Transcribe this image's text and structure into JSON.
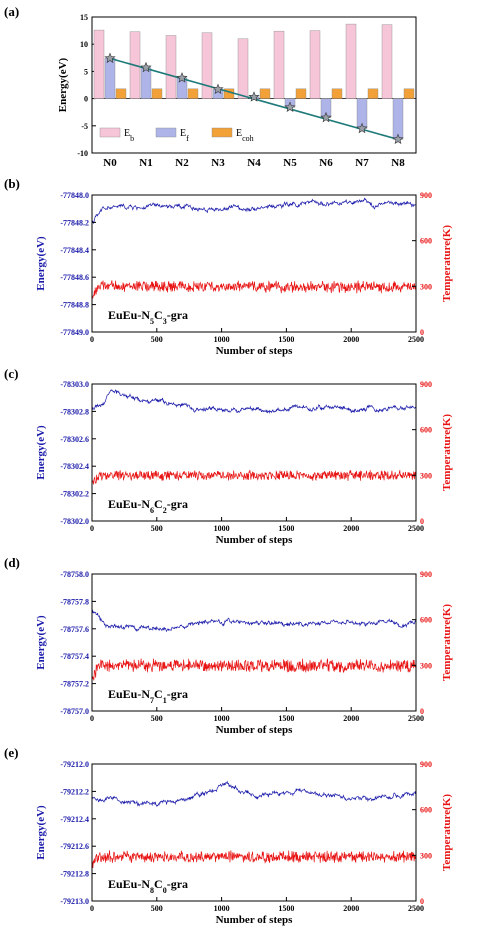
{
  "chart_data": [
    {
      "panel": "(a)",
      "type": "bar",
      "categories": [
        "N0",
        "N1",
        "N2",
        "N3",
        "N4",
        "N5",
        "N6",
        "N7",
        "N8"
      ],
      "ylabel": "Energy(eV)",
      "ylim": [
        -10,
        15
      ],
      "yticks": [
        -10,
        -5,
        0,
        5,
        10,
        15
      ],
      "series": [
        {
          "name": "E_b",
          "legend": {
            "main": "E",
            "sub": "b"
          },
          "color": "#f6c6d8",
          "values": [
            12.6,
            12.3,
            11.6,
            12.1,
            11.0,
            12.4,
            12.5,
            13.7,
            13.6
          ]
        },
        {
          "name": "E_f",
          "legend": {
            "main": "E",
            "sub": "f"
          },
          "color": "#aeb4e8",
          "values": [
            7.4,
            5.7,
            3.8,
            1.7,
            0.3,
            -1.6,
            -3.5,
            -5.5,
            -7.5
          ]
        },
        {
          "name": "E_coh",
          "legend": {
            "main": "E",
            "sub": "coh"
          },
          "color": "#f2a038",
          "values": [
            1.8,
            1.8,
            1.8,
            1.8,
            1.8,
            1.8,
            1.8,
            1.8,
            1.8
          ]
        }
      ],
      "fit_line": {
        "color": "#1f7a7a",
        "from": 7.4,
        "to": -7.5
      },
      "legend_placement": "bottom-left"
    },
    {
      "panel": "(b)",
      "type": "line",
      "system": {
        "pre": "EuEu-N",
        "n": "5",
        "mid": "C",
        "c": "3",
        "post": "-gra"
      },
      "xlabel": "Number of steps",
      "ylabel_left": "Energy(eV)",
      "ylabel_right": "Temperature(K)",
      "xlim": [
        0,
        2500
      ],
      "xticks": [
        0,
        500,
        1000,
        1500,
        2000,
        2500
      ],
      "ylim_left": [
        -77849.0,
        -77848.0
      ],
      "yticks_left": [
        "-77849.0",
        "-77848.8",
        "-77848.6",
        "-77848.4",
        "-77848.2",
        "-77848.0"
      ],
      "ylim_right": [
        0,
        900
      ],
      "yticks_right": [
        "0",
        "300",
        "600",
        "900"
      ],
      "series": [
        {
          "name": "Energy",
          "axis": "left",
          "color": "#1a1aaa",
          "mean": -77848.08,
          "amplitude": 0.03,
          "anchors": [
            [
              0,
              -77848.2
            ],
            [
              100,
              -77848.09
            ],
            [
              500,
              -77848.09
            ],
            [
              1000,
              -77848.1
            ],
            [
              1800,
              -77848.06
            ],
            [
              2500,
              -77848.07
            ]
          ]
        },
        {
          "name": "Temperature",
          "axis": "right",
          "color": "#e81414",
          "mean": 295,
          "amplitude": 40,
          "anchors": [
            [
              0,
              230
            ],
            [
              50,
              300
            ],
            [
              2500,
              295
            ]
          ]
        }
      ]
    },
    {
      "panel": "(c)",
      "type": "line",
      "system": {
        "pre": "EuEu-N",
        "n": "6",
        "mid": "C",
        "c": "2",
        "post": "-gra"
      },
      "xlabel": "Number of steps",
      "ylabel_left": "Energy(eV)",
      "ylabel_right": "Temperature(K)",
      "xlim": [
        0,
        2500
      ],
      "xticks": [
        0,
        500,
        1000,
        1500,
        2000,
        2500
      ],
      "ylim_left": [
        -78302.0,
        -78303.0
      ],
      "yticks_left": [
        "-78302.0",
        "-78302.2",
        "-78302.4",
        "-78302.6",
        "-78302.8",
        "-78303.0"
      ],
      "ylim_right": [
        0,
        900
      ],
      "yticks_right": [
        "0",
        "300",
        "600",
        "900"
      ],
      "series": [
        {
          "name": "Energy",
          "axis": "left",
          "color": "#1a1aaa",
          "mean": -78302.84,
          "amplitude": 0.03,
          "anchors": [
            [
              0,
              -78302.82
            ],
            [
              150,
              -78302.93
            ],
            [
              500,
              -78302.87
            ],
            [
              1000,
              -78302.8
            ],
            [
              1500,
              -78302.82
            ],
            [
              2000,
              -78302.82
            ],
            [
              2500,
              -78302.84
            ]
          ]
        },
        {
          "name": "Temperature",
          "axis": "right",
          "color": "#e81414",
          "mean": 300,
          "amplitude": 35,
          "anchors": [
            [
              0,
              240
            ],
            [
              50,
              300
            ],
            [
              2500,
              300
            ]
          ]
        }
      ]
    },
    {
      "panel": "(d)",
      "type": "line",
      "system": {
        "pre": "EuEu-N",
        "n": "7",
        "mid": "C",
        "c": "1",
        "post": "-gra"
      },
      "xlabel": "Number of steps",
      "ylabel_left": "Energy(eV)",
      "ylabel_right": "Temperature(K)",
      "xlim": [
        0,
        2500
      ],
      "xticks": [
        0,
        500,
        1000,
        1500,
        2000,
        2500
      ],
      "ylim_left": [
        -78757.0,
        -78758.0
      ],
      "yticks_left": [
        "-78757.0",
        "-78757.2",
        "-78757.4",
        "-78757.6",
        "-78757.8",
        "-78758.0"
      ],
      "ylim_right": [
        0,
        900
      ],
      "yticks_right": [
        "0",
        "300",
        "600",
        "900"
      ],
      "series": [
        {
          "name": "Energy",
          "axis": "left",
          "color": "#1a1aaa",
          "mean": -78757.65,
          "amplitude": 0.03,
          "anchors": [
            [
              0,
              -78757.75
            ],
            [
              100,
              -78757.64
            ],
            [
              500,
              -78757.6
            ],
            [
              1000,
              -78757.66
            ],
            [
              1500,
              -78757.64
            ],
            [
              2000,
              -78757.65
            ],
            [
              2500,
              -78757.64
            ]
          ]
        },
        {
          "name": "Temperature",
          "axis": "right",
          "color": "#e81414",
          "mean": 295,
          "amplitude": 45,
          "anchors": [
            [
              0,
              220
            ],
            [
              50,
              300
            ],
            [
              2500,
              295
            ]
          ]
        }
      ]
    },
    {
      "panel": "(e)",
      "type": "line",
      "system": {
        "pre": "EuEu-N",
        "n": "8",
        "mid": "C",
        "c": "0",
        "post": "-gra"
      },
      "xlabel": "Number of steps",
      "ylabel_left": "Energy(eV)",
      "ylabel_right": "Temperature(K)",
      "xlim": [
        0,
        2500
      ],
      "xticks": [
        0,
        500,
        1000,
        1500,
        2000,
        2500
      ],
      "ylim_left": [
        -79213.0,
        -79212.0
      ],
      "yticks_left": [
        "-79213.0",
        "-79212.8",
        "-79212.6",
        "-79212.4",
        "-79212.2",
        "-79212.0"
      ],
      "ylim_right": [
        0,
        900
      ],
      "yticks_right": [
        "0",
        "300",
        "600",
        "900"
      ],
      "series": [
        {
          "name": "Energy",
          "axis": "left",
          "color": "#1a1aaa",
          "mean": -79212.24,
          "amplitude": 0.03,
          "anchors": [
            [
              0,
              -79212.25
            ],
            [
              500,
              -79212.3
            ],
            [
              800,
              -79212.22
            ],
            [
              1050,
              -79212.14
            ],
            [
              1300,
              -79212.24
            ],
            [
              1600,
              -79212.2
            ],
            [
              2000,
              -79212.25
            ],
            [
              2500,
              -79212.22
            ]
          ]
        },
        {
          "name": "Temperature",
          "axis": "right",
          "color": "#e81414",
          "mean": 290,
          "amplitude": 40,
          "anchors": [
            [
              0,
              240
            ],
            [
              50,
              290
            ],
            [
              2500,
              290
            ]
          ]
        }
      ]
    }
  ]
}
